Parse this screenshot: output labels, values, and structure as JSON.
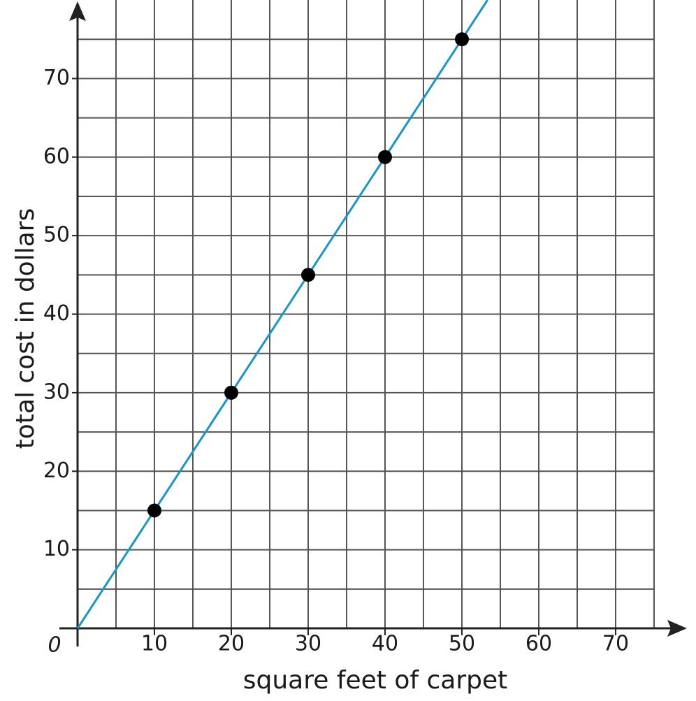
{
  "chart_data": {
    "type": "scatter",
    "x_label": "square feet of carpet",
    "y_label": "total cost in dollars",
    "series": [
      {
        "x": [
          10,
          20,
          30,
          40,
          50
        ],
        "values": [
          15,
          30,
          45,
          60,
          75
        ],
        "color": "#000000",
        "line_color": "#1a96c4"
      }
    ],
    "xlim": [
      0,
      80
    ],
    "ylim": [
      0,
      80
    ],
    "xticks": [
      0,
      10,
      20,
      30,
      40,
      50,
      60,
      70
    ],
    "yticks": [
      10,
      20,
      30,
      40,
      50,
      60,
      70
    ],
    "grid": true,
    "grid_step": 5
  }
}
